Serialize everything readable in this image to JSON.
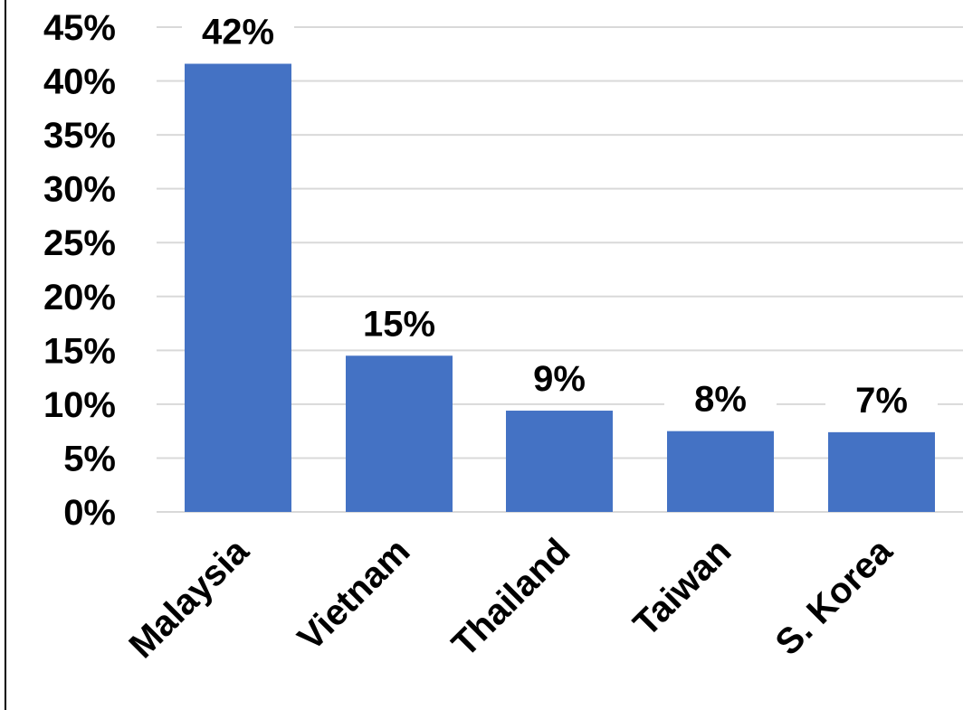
{
  "chart_data": {
    "type": "bar",
    "categories": [
      "Malaysia",
      "Vietnam",
      "Thailand",
      "Taiwan",
      "S. Korea"
    ],
    "values": [
      41.6,
      14.5,
      9.4,
      7.5,
      7.4
    ],
    "data_labels": [
      "42%",
      "15%",
      "9%",
      "8%",
      "7%"
    ],
    "y_ticks": [
      0,
      5,
      10,
      15,
      20,
      25,
      30,
      35,
      40,
      45
    ],
    "y_tick_labels": [
      "0%",
      "5%",
      "10%",
      "15%",
      "20%",
      "25%",
      "30%",
      "35%",
      "40%",
      "45%"
    ],
    "ylim": [
      0,
      45
    ],
    "grid": true,
    "legend": "none",
    "bar_color": "#4472C4",
    "title": "",
    "xlabel": "",
    "ylabel": ""
  }
}
